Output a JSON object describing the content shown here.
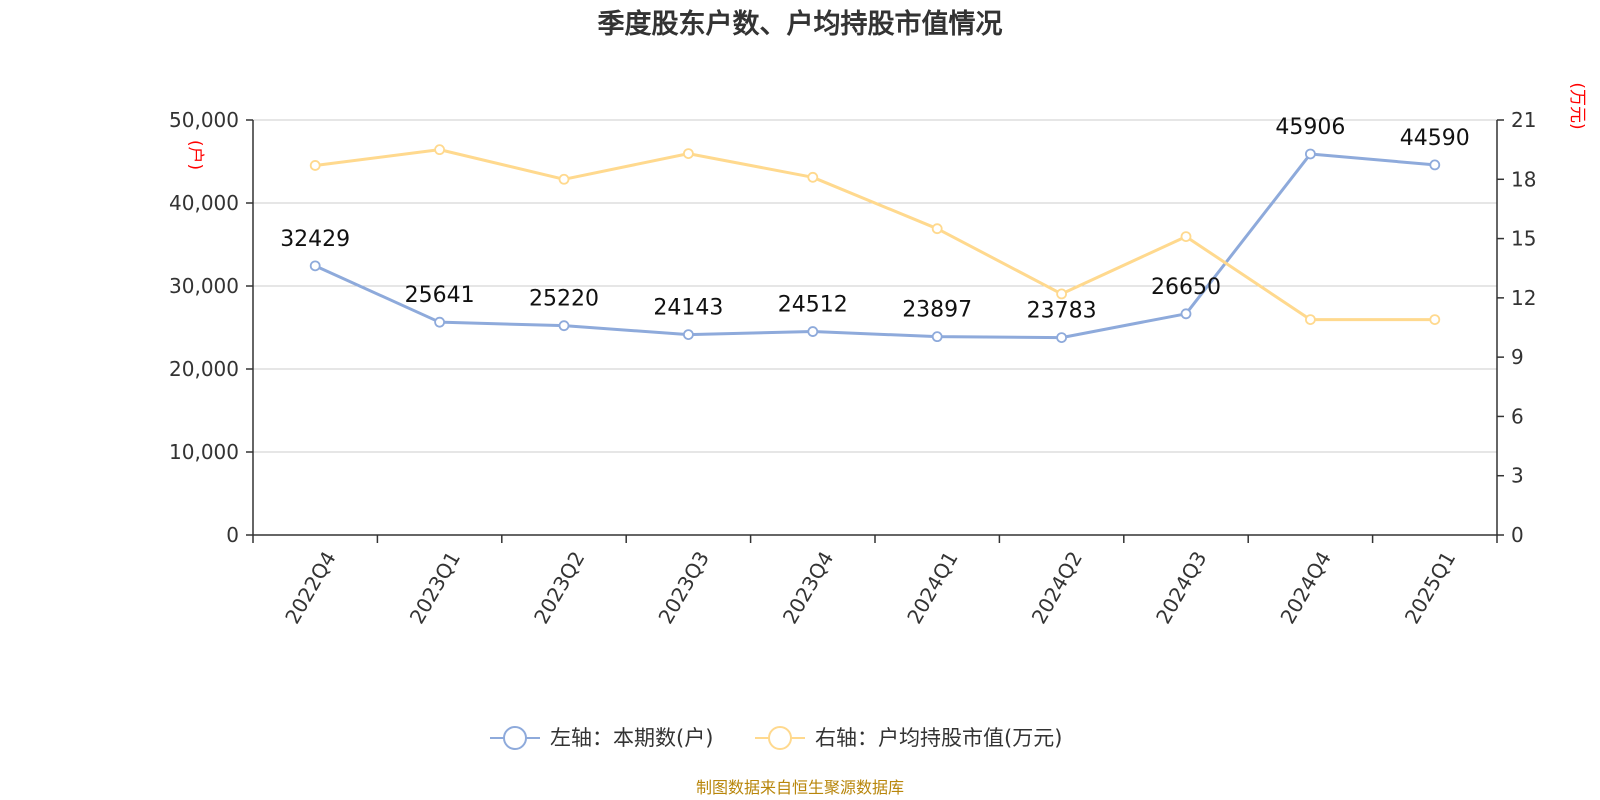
{
  "chart_data": {
    "type": "line",
    "title": "季度股东户数、户均持股市值情况",
    "categories": [
      "2022Q4",
      "2023Q1",
      "2023Q2",
      "2023Q3",
      "2023Q4",
      "2024Q1",
      "2024Q2",
      "2024Q3",
      "2024Q4",
      "2025Q1"
    ],
    "series": [
      {
        "name": "左轴：本期数(户)",
        "axis": "left",
        "color": "#8eaadb",
        "values": [
          32429,
          25641,
          25220,
          24143,
          24512,
          23897,
          23783,
          26650,
          45906,
          44590
        ],
        "labels": [
          "32429",
          "25641",
          "25220",
          "24143",
          "24512",
          "23897",
          "23783",
          "26650",
          "45906",
          "44590"
        ]
      },
      {
        "name": "右轴：户均持股市值(万元)",
        "axis": "right",
        "color": "#ffd98e",
        "values": [
          18.7,
          19.5,
          18.0,
          19.3,
          18.1,
          15.5,
          12.2,
          15.1,
          10.9,
          10.9
        ]
      }
    ],
    "y_left": {
      "unit": "(户)",
      "range": [
        0,
        50000
      ],
      "tick_labels": [
        "0",
        "10,000",
        "20,000",
        "30,000",
        "40,000",
        "50,000"
      ],
      "tick_values": [
        0,
        10000,
        20000,
        30000,
        40000,
        50000
      ]
    },
    "y_right": {
      "unit": "(万元)",
      "range": [
        0,
        21
      ],
      "tick_labels": [
        "0",
        "3",
        "6",
        "9",
        "12",
        "15",
        "18",
        "21"
      ],
      "tick_values": [
        0,
        3,
        6,
        9,
        12,
        15,
        18,
        21
      ]
    },
    "grid": true,
    "legend_position": "bottom-center",
    "source": "制图数据来自恒生聚源数据库"
  }
}
